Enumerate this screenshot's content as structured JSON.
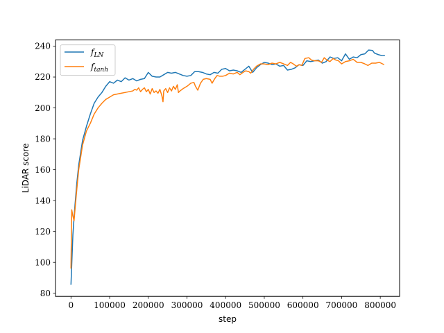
{
  "chart_data": {
    "type": "line",
    "title": "",
    "xlabel": "step",
    "ylabel": "LiDAR score",
    "xlim": [
      -40000,
      850000
    ],
    "ylim": [
      78,
      244
    ],
    "xticks": [
      0,
      100000,
      200000,
      300000,
      400000,
      500000,
      600000,
      700000,
      800000
    ],
    "xtick_labels": [
      "0",
      "100000",
      "200000",
      "300000",
      "400000",
      "500000",
      "600000",
      "700000",
      "800000"
    ],
    "yticks": [
      80,
      100,
      120,
      140,
      160,
      180,
      200,
      220,
      240
    ],
    "ytick_labels": [
      "80",
      "100",
      "120",
      "140",
      "160",
      "180",
      "200",
      "220",
      "240"
    ],
    "grid": false,
    "legend_position": "top-left",
    "series": [
      {
        "name": "f_LN",
        "legend_main": "f",
        "legend_sub": "LN",
        "color": "#1f77b4",
        "points": [
          [
            0,
            85.5
          ],
          [
            5000,
            118
          ],
          [
            10000,
            136
          ],
          [
            15000,
            151
          ],
          [
            20000,
            163
          ],
          [
            30000,
            179
          ],
          [
            40000,
            188
          ],
          [
            50000,
            196
          ],
          [
            60000,
            203
          ],
          [
            70000,
            207
          ],
          [
            80000,
            210
          ],
          [
            90000,
            214
          ],
          [
            100000,
            217
          ],
          [
            110000,
            216
          ],
          [
            120000,
            218
          ],
          [
            130000,
            217
          ],
          [
            140000,
            219.5
          ],
          [
            150000,
            218
          ],
          [
            160000,
            219
          ],
          [
            170000,
            217.5
          ],
          [
            180000,
            218.5
          ],
          [
            190000,
            219
          ],
          [
            200000,
            223
          ],
          [
            210000,
            220.5
          ],
          [
            220000,
            220
          ],
          [
            230000,
            220
          ],
          [
            240000,
            221.5
          ],
          [
            250000,
            223
          ],
          [
            260000,
            222.5
          ],
          [
            270000,
            223
          ],
          [
            280000,
            222
          ],
          [
            290000,
            221
          ],
          [
            300000,
            220.5
          ],
          [
            310000,
            221
          ],
          [
            320000,
            223.5
          ],
          [
            330000,
            223.5
          ],
          [
            340000,
            223
          ],
          [
            350000,
            222
          ],
          [
            360000,
            221.5
          ],
          [
            370000,
            223
          ],
          [
            380000,
            222.5
          ],
          [
            390000,
            225
          ],
          [
            400000,
            225.5
          ],
          [
            410000,
            224
          ],
          [
            420000,
            224.5
          ],
          [
            430000,
            224
          ],
          [
            440000,
            223
          ],
          [
            450000,
            225
          ],
          [
            460000,
            227
          ],
          [
            470000,
            223
          ],
          [
            480000,
            226
          ],
          [
            490000,
            228
          ],
          [
            500000,
            229.5
          ],
          [
            510000,
            229
          ],
          [
            520000,
            228
          ],
          [
            530000,
            228.5
          ],
          [
            540000,
            227
          ],
          [
            550000,
            227.5
          ],
          [
            560000,
            224.5
          ],
          [
            570000,
            225
          ],
          [
            580000,
            226
          ],
          [
            590000,
            228
          ],
          [
            600000,
            227.5
          ],
          [
            610000,
            230.5
          ],
          [
            620000,
            230
          ],
          [
            630000,
            230.5
          ],
          [
            640000,
            231
          ],
          [
            650000,
            229
          ],
          [
            660000,
            230
          ],
          [
            670000,
            233
          ],
          [
            680000,
            232
          ],
          [
            690000,
            232.5
          ],
          [
            700000,
            230.5
          ],
          [
            710000,
            235
          ],
          [
            720000,
            231.5
          ],
          [
            730000,
            233
          ],
          [
            740000,
            232.5
          ],
          [
            750000,
            234.5
          ],
          [
            760000,
            235
          ],
          [
            770000,
            237.5
          ],
          [
            780000,
            237.2
          ],
          [
            785000,
            235.5
          ],
          [
            795000,
            234.5
          ],
          [
            805000,
            233.8
          ],
          [
            812000,
            234
          ]
        ]
      },
      {
        "name": "f_tanh",
        "legend_main": "f",
        "legend_sub": "tanh",
        "color": "#ff7f0e",
        "points": [
          [
            0,
            96
          ],
          [
            2000,
            134
          ],
          [
            5000,
            130
          ],
          [
            8000,
            127
          ],
          [
            10000,
            133
          ],
          [
            15000,
            147
          ],
          [
            20000,
            160
          ],
          [
            30000,
            176
          ],
          [
            40000,
            185
          ],
          [
            50000,
            190
          ],
          [
            60000,
            196
          ],
          [
            70000,
            200
          ],
          [
            80000,
            203
          ],
          [
            90000,
            205.5
          ],
          [
            100000,
            207
          ],
          [
            110000,
            208.5
          ],
          [
            120000,
            209
          ],
          [
            130000,
            209.5
          ],
          [
            140000,
            210
          ],
          [
            150000,
            210.5
          ],
          [
            160000,
            211
          ],
          [
            165000,
            212
          ],
          [
            170000,
            211.5
          ],
          [
            175000,
            213
          ],
          [
            180000,
            210.5
          ],
          [
            185000,
            212
          ],
          [
            190000,
            213
          ],
          [
            195000,
            210.5
          ],
          [
            200000,
            212
          ],
          [
            205000,
            209
          ],
          [
            210000,
            212.5
          ],
          [
            215000,
            210
          ],
          [
            220000,
            211
          ],
          [
            225000,
            209.5
          ],
          [
            230000,
            212
          ],
          [
            235000,
            208
          ],
          [
            238000,
            204
          ],
          [
            240000,
            211
          ],
          [
            245000,
            212.5
          ],
          [
            250000,
            210
          ],
          [
            255000,
            213
          ],
          [
            260000,
            211
          ],
          [
            265000,
            214
          ],
          [
            270000,
            212
          ],
          [
            275000,
            215
          ],
          [
            278000,
            210
          ],
          [
            282000,
            211
          ],
          [
            290000,
            212.5
          ],
          [
            300000,
            214
          ],
          [
            310000,
            216
          ],
          [
            318000,
            216.5
          ],
          [
            322000,
            214
          ],
          [
            328000,
            211.5
          ],
          [
            335000,
            216
          ],
          [
            342000,
            218.5
          ],
          [
            350000,
            219
          ],
          [
            360000,
            218.5
          ],
          [
            365000,
            216
          ],
          [
            372000,
            219
          ],
          [
            378000,
            221
          ],
          [
            385000,
            220.5
          ],
          [
            392000,
            220.5
          ],
          [
            400000,
            221
          ],
          [
            410000,
            222.5
          ],
          [
            420000,
            222
          ],
          [
            430000,
            223
          ],
          [
            437000,
            221.5
          ],
          [
            445000,
            223
          ],
          [
            452000,
            224
          ],
          [
            460000,
            223.5
          ],
          [
            465000,
            222.5
          ],
          [
            472000,
            225
          ],
          [
            480000,
            227
          ],
          [
            490000,
            228.5
          ],
          [
            500000,
            228.5
          ],
          [
            510000,
            228
          ],
          [
            520000,
            229
          ],
          [
            530000,
            228.5
          ],
          [
            540000,
            229.5
          ],
          [
            550000,
            228.5
          ],
          [
            560000,
            227.5
          ],
          [
            568000,
            229.5
          ],
          [
            575000,
            228.5
          ],
          [
            583000,
            227
          ],
          [
            590000,
            228
          ],
          [
            597000,
            227.5
          ],
          [
            605000,
            232
          ],
          [
            615000,
            232.5
          ],
          [
            622000,
            231
          ],
          [
            630000,
            230.5
          ],
          [
            640000,
            230.5
          ],
          [
            648000,
            229.5
          ],
          [
            655000,
            232.5
          ],
          [
            662000,
            231
          ],
          [
            670000,
            230
          ],
          [
            678000,
            232
          ],
          [
            685000,
            231
          ],
          [
            692000,
            230.5
          ],
          [
            700000,
            228.5
          ],
          [
            710000,
            230
          ],
          [
            720000,
            230.5
          ],
          [
            730000,
            231.5
          ],
          [
            740000,
            229.5
          ],
          [
            750000,
            229.5
          ],
          [
            760000,
            228.5
          ],
          [
            768000,
            227.5
          ],
          [
            778000,
            229
          ],
          [
            788000,
            229
          ],
          [
            798000,
            229.5
          ],
          [
            806000,
            228.5
          ],
          [
            810000,
            228
          ]
        ]
      }
    ]
  }
}
